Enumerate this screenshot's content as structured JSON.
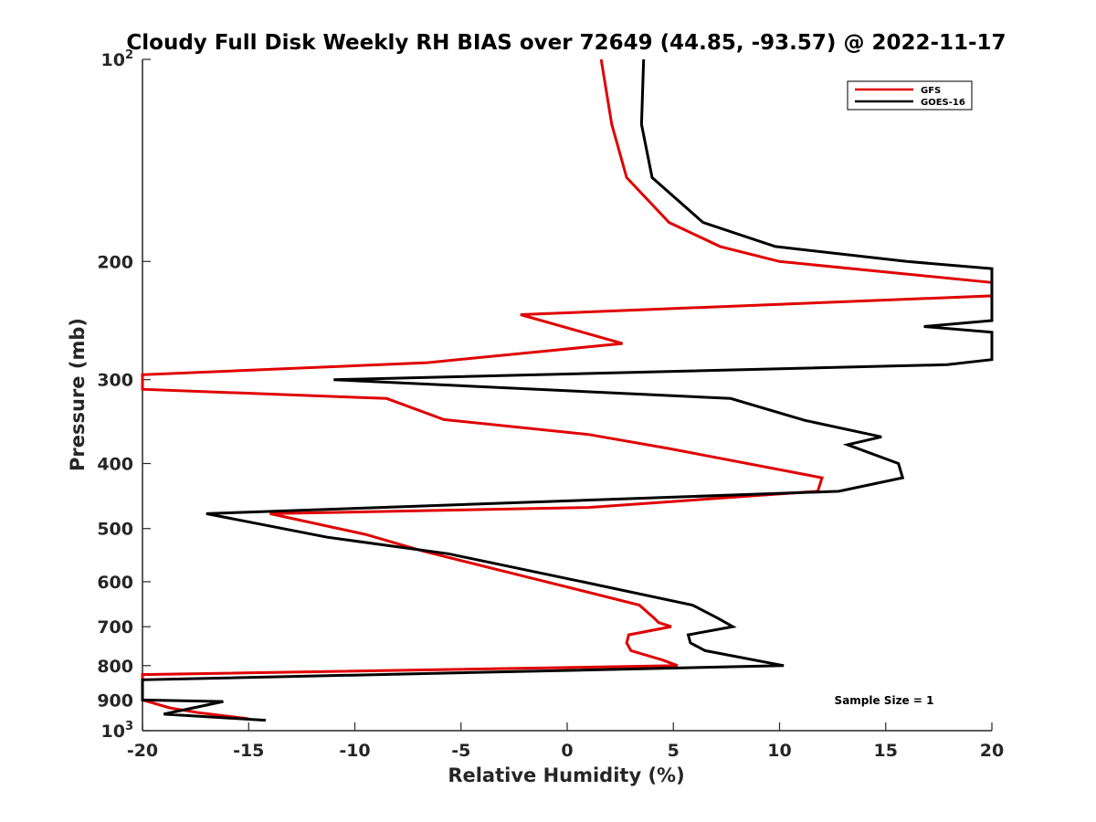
{
  "chart_data": {
    "type": "line",
    "title": "Cloudy Full Disk Weekly RH BIAS over 72649 (44.85, -93.57) @ 2022-11-17",
    "xlabel": "Relative Humidity (%)",
    "ylabel": "Pressure (mb)",
    "xlim": [
      -20,
      20
    ],
    "ylim": [
      100,
      1000
    ],
    "y_scale": "log",
    "y_reversed": true,
    "x_ticks": [
      -20,
      -15,
      -10,
      -5,
      0,
      5,
      10,
      15,
      20
    ],
    "x_tick_labels": [
      "-20",
      "-15",
      "-10",
      "-5",
      "0",
      "5",
      "10",
      "15",
      "20"
    ],
    "y_ticks": [
      100,
      200,
      300,
      400,
      500,
      600,
      700,
      800,
      900,
      1000
    ],
    "y_tick_labels": [
      {
        "base": "10",
        "exp": "2"
      },
      {
        "base": "200",
        "exp": ""
      },
      {
        "base": "300",
        "exp": ""
      },
      {
        "base": "400",
        "exp": ""
      },
      {
        "base": "500",
        "exp": ""
      },
      {
        "base": "600",
        "exp": ""
      },
      {
        "base": "700",
        "exp": ""
      },
      {
        "base": "800",
        "exp": ""
      },
      {
        "base": "900",
        "exp": ""
      },
      {
        "base": "10",
        "exp": "3"
      }
    ],
    "legend_position": "top-right",
    "grid": false,
    "series": [
      {
        "name": "GFS",
        "color": "#e00000",
        "points": [
          [
            1.6,
            100
          ],
          [
            2.1,
            125
          ],
          [
            2.8,
            150
          ],
          [
            4.8,
            175
          ],
          [
            7.2,
            190
          ],
          [
            10,
            200
          ],
          [
            20,
            215
          ],
          [
            20,
            225
          ],
          [
            -2.2,
            240
          ],
          [
            2.6,
            265
          ],
          [
            -6.6,
            283
          ],
          [
            -20,
            295
          ],
          [
            -20,
            310
          ],
          [
            -8.5,
            320
          ],
          [
            -5.8,
            344
          ],
          [
            1.0,
            362
          ],
          [
            4.8,
            380
          ],
          [
            12,
            420
          ],
          [
            11.8,
            440
          ],
          [
            1.0,
            465
          ],
          [
            -14,
            475
          ],
          [
            -9.5,
            510
          ],
          [
            -6.8,
            540
          ],
          [
            -1.0,
            600
          ],
          [
            3.4,
            650
          ],
          [
            4.1,
            680
          ],
          [
            4.3,
            690
          ],
          [
            4.9,
            700
          ],
          [
            2.9,
            720
          ],
          [
            2.8,
            740
          ],
          [
            3.0,
            760
          ],
          [
            4.5,
            785
          ],
          [
            5.2,
            800
          ],
          [
            -20,
            825
          ],
          [
            -20,
            900
          ],
          [
            -18.7,
            925
          ],
          [
            -17.4,
            940
          ],
          [
            -15,
            960
          ]
        ]
      },
      {
        "name": "GOES-16",
        "color": "#000000",
        "points": [
          [
            3.6,
            100
          ],
          [
            3.5,
            125
          ],
          [
            4.0,
            150
          ],
          [
            6.4,
            175
          ],
          [
            9.8,
            190
          ],
          [
            16,
            200
          ],
          [
            20,
            205
          ],
          [
            20,
            245
          ],
          [
            16.8,
            250
          ],
          [
            20,
            255
          ],
          [
            20,
            280
          ],
          [
            17.9,
            285
          ],
          [
            -11,
            300
          ],
          [
            7.7,
            320
          ],
          [
            11.2,
            345
          ],
          [
            14.8,
            365
          ],
          [
            13.2,
            375
          ],
          [
            15.6,
            400
          ],
          [
            15.8,
            420
          ],
          [
            12.8,
            440
          ],
          [
            -17,
            475
          ],
          [
            -11.3,
            515
          ],
          [
            -5.6,
            545
          ],
          [
            0.7,
            600
          ],
          [
            5.9,
            650
          ],
          [
            7.1,
            680
          ],
          [
            7.8,
            700
          ],
          [
            5.7,
            720
          ],
          [
            5.8,
            740
          ],
          [
            6.5,
            760
          ],
          [
            10.2,
            800
          ],
          [
            -20,
            840
          ],
          [
            -20,
            900
          ],
          [
            -16.2,
            905
          ],
          [
            -19,
            945
          ],
          [
            -14.2,
            965
          ]
        ]
      }
    ],
    "annotations": [
      "Sample Size = 1"
    ]
  }
}
